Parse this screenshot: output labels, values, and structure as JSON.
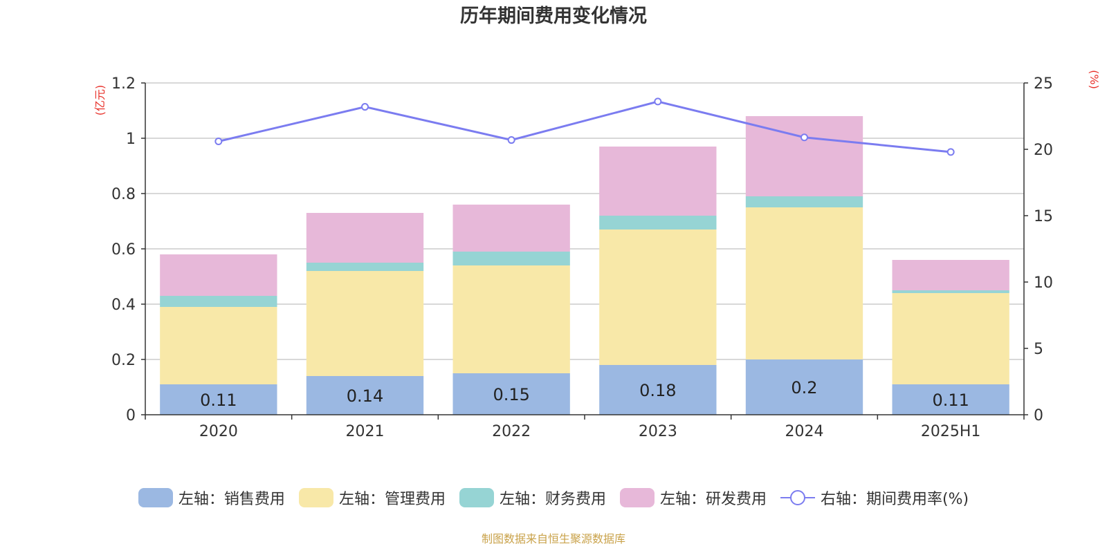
{
  "chart_data": {
    "type": "bar",
    "title": "历年期间费用变化情况",
    "categories": [
      "2020",
      "2021",
      "2022",
      "2023",
      "2024",
      "2025H1"
    ],
    "stacked": true,
    "left_axis": {
      "unit": "(亿元)",
      "ylim": [
        0,
        1.2
      ],
      "ticks": [
        "0",
        "0.2",
        "0.4",
        "0.6",
        "0.8",
        "1",
        "1.2"
      ]
    },
    "right_axis": {
      "unit": "(%)",
      "ylim": [
        0,
        25
      ],
      "ticks": [
        "0",
        "5",
        "10",
        "15",
        "20",
        "25"
      ]
    },
    "series": [
      {
        "name": "左轴：销售费用",
        "type": "bar",
        "axis": "left",
        "color": "#9bb8e2",
        "values": [
          0.11,
          0.14,
          0.15,
          0.18,
          0.2,
          0.11
        ],
        "labels": [
          "0.11",
          "0.14",
          "0.15",
          "0.18",
          "0.2",
          "0.11"
        ]
      },
      {
        "name": "左轴：管理费用",
        "type": "bar",
        "axis": "left",
        "color": "#f8e8a8",
        "values": [
          0.28,
          0.38,
          0.39,
          0.49,
          0.55,
          0.33
        ]
      },
      {
        "name": "左轴：财务费用",
        "type": "bar",
        "axis": "left",
        "color": "#96d4d4",
        "values": [
          0.04,
          0.03,
          0.05,
          0.05,
          0.04,
          0.01
        ]
      },
      {
        "name": "左轴：研发费用",
        "type": "bar",
        "axis": "left",
        "color": "#e7b8d9",
        "values": [
          0.15,
          0.18,
          0.17,
          0.25,
          0.29,
          0.11
        ]
      },
      {
        "name": "右轴：期间费用率(%)",
        "type": "line",
        "axis": "right",
        "color": "#7b7cf0",
        "values": [
          20.6,
          23.2,
          20.7,
          23.6,
          20.9,
          19.8
        ]
      }
    ],
    "grid": true,
    "legend_position": "bottom"
  },
  "colors": {
    "unit_label": "#e8312a",
    "grid": "#cccccc",
    "axis": "#333333",
    "source": "#c9a24a"
  },
  "footer": {
    "source": "制图数据来自恒生聚源数据库"
  }
}
